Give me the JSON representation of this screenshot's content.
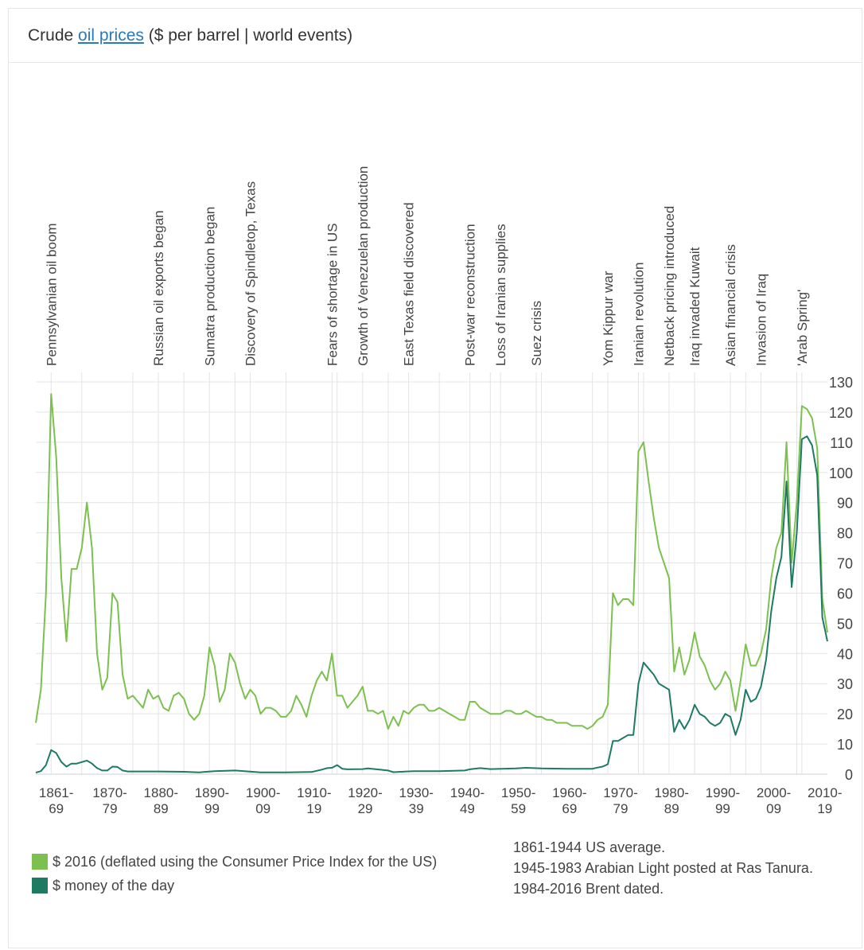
{
  "header": {
    "prefix": "Crude ",
    "link": "oil prices",
    "suffix": " ($ per barrel | world events)"
  },
  "colors": {
    "real_series": "#7cc04f",
    "nominal_series": "#1e7a63",
    "grid": "#e4e4e4",
    "text": "#444444"
  },
  "chart_data": {
    "type": "line",
    "ylim": [
      0,
      130
    ],
    "xlim": [
      1861,
      2016
    ],
    "y_ticks": [
      "0",
      "10",
      "20",
      "30",
      "40",
      "50",
      "60",
      "70",
      "80",
      "90",
      "100",
      "110",
      "120",
      "130"
    ],
    "x_tick_labels": [
      {
        "line1": "1861-",
        "line2": "69"
      },
      {
        "line1": "1870-",
        "line2": "79"
      },
      {
        "line1": "1880-",
        "line2": "89"
      },
      {
        "line1": "1890-",
        "line2": "99"
      },
      {
        "line1": "1900-",
        "line2": "09"
      },
      {
        "line1": "1910-",
        "line2": "19"
      },
      {
        "line1": "1920-",
        "line2": "29"
      },
      {
        "line1": "1930-",
        "line2": "39"
      },
      {
        "line1": "1940-",
        "line2": "49"
      },
      {
        "line1": "1950-",
        "line2": "59"
      },
      {
        "line1": "1960-",
        "line2": "69"
      },
      {
        "line1": "1970-",
        "line2": "79"
      },
      {
        "line1": "1980-",
        "line2": "89"
      },
      {
        "line1": "1990-",
        "line2": "99"
      },
      {
        "line1": "2000-",
        "line2": "09"
      },
      {
        "line1": "2010-",
        "line2": "19"
      }
    ],
    "events": [
      {
        "label": "Pennsylvanian oil boom",
        "year": 1864
      },
      {
        "label": "Russian oil exports  began",
        "year": 1885
      },
      {
        "label": "Sumatra production began",
        "year": 1895
      },
      {
        "label": "Discovery of Spindletop, Texas",
        "year": 1903
      },
      {
        "label": "Fears of shortage in US",
        "year": 1919
      },
      {
        "label": "Growth of Venezuelan production",
        "year": 1925
      },
      {
        "label": "East Texas field discovered",
        "year": 1934
      },
      {
        "label": "Post-war reconstruction",
        "year": 1946
      },
      {
        "label": "Loss of Iranian supplies",
        "year": 1952
      },
      {
        "label": "Suez crisis",
        "year": 1959
      },
      {
        "label": "Yom Kippur war",
        "year": 1973
      },
      {
        "label": "Iranian revolution",
        "year": 1979
      },
      {
        "label": "Netback pricing introduced",
        "year": 1985
      },
      {
        "label": "Iraq invaded Kuwait",
        "year": 1990
      },
      {
        "label": "Asian financial crisis",
        "year": 1997
      },
      {
        "label": "Invasion of Iraq",
        "year": 2003
      },
      {
        "label": "'Arab Spring'",
        "year": 2011
      }
    ],
    "series": [
      {
        "name": "$ 2016 (deflated using the Consumer Price Index for the US)",
        "points": [
          [
            1861,
            17
          ],
          [
            1862,
            28
          ],
          [
            1863,
            60
          ],
          [
            1864,
            126
          ],
          [
            1865,
            105
          ],
          [
            1866,
            65
          ],
          [
            1867,
            44
          ],
          [
            1868,
            68
          ],
          [
            1869,
            68
          ],
          [
            1870,
            75
          ],
          [
            1871,
            90
          ],
          [
            1872,
            75
          ],
          [
            1873,
            40
          ],
          [
            1874,
            28
          ],
          [
            1875,
            32
          ],
          [
            1876,
            60
          ],
          [
            1877,
            57
          ],
          [
            1878,
            33
          ],
          [
            1879,
            25
          ],
          [
            1880,
            26
          ],
          [
            1881,
            24
          ],
          [
            1882,
            22
          ],
          [
            1883,
            28
          ],
          [
            1884,
            25
          ],
          [
            1885,
            26
          ],
          [
            1886,
            22
          ],
          [
            1887,
            21
          ],
          [
            1888,
            26
          ],
          [
            1889,
            27
          ],
          [
            1890,
            25
          ],
          [
            1891,
            20
          ],
          [
            1892,
            18
          ],
          [
            1893,
            20
          ],
          [
            1894,
            26
          ],
          [
            1895,
            42
          ],
          [
            1896,
            36
          ],
          [
            1897,
            24
          ],
          [
            1898,
            28
          ],
          [
            1899,
            40
          ],
          [
            1900,
            37
          ],
          [
            1901,
            30
          ],
          [
            1902,
            25
          ],
          [
            1903,
            28
          ],
          [
            1904,
            26
          ],
          [
            1905,
            20
          ],
          [
            1906,
            22
          ],
          [
            1907,
            22
          ],
          [
            1908,
            21
          ],
          [
            1909,
            19
          ],
          [
            1910,
            19
          ],
          [
            1911,
            21
          ],
          [
            1912,
            26
          ],
          [
            1913,
            23
          ],
          [
            1914,
            19
          ],
          [
            1915,
            26
          ],
          [
            1916,
            31
          ],
          [
            1917,
            34
          ],
          [
            1918,
            31
          ],
          [
            1919,
            40
          ],
          [
            1920,
            26
          ],
          [
            1921,
            26
          ],
          [
            1922,
            22
          ],
          [
            1923,
            24
          ],
          [
            1924,
            26
          ],
          [
            1925,
            29
          ],
          [
            1926,
            21
          ],
          [
            1927,
            21
          ],
          [
            1928,
            20
          ],
          [
            1929,
            21
          ],
          [
            1930,
            15
          ],
          [
            1931,
            19
          ],
          [
            1932,
            16
          ],
          [
            1933,
            21
          ],
          [
            1934,
            20
          ],
          [
            1935,
            22
          ],
          [
            1936,
            23
          ],
          [
            1937,
            23
          ],
          [
            1938,
            21
          ],
          [
            1939,
            21
          ],
          [
            1940,
            22
          ],
          [
            1941,
            21
          ],
          [
            1942,
            20
          ],
          [
            1943,
            19
          ],
          [
            1944,
            18
          ],
          [
            1945,
            18
          ],
          [
            1946,
            24
          ],
          [
            1947,
            24
          ],
          [
            1948,
            22
          ],
          [
            1949,
            21
          ],
          [
            1950,
            20
          ],
          [
            1951,
            20
          ],
          [
            1952,
            20
          ],
          [
            1953,
            21
          ],
          [
            1954,
            21
          ],
          [
            1955,
            20
          ],
          [
            1956,
            20
          ],
          [
            1957,
            21
          ],
          [
            1958,
            20
          ],
          [
            1959,
            19
          ],
          [
            1960,
            19
          ],
          [
            1961,
            18
          ],
          [
            1962,
            18
          ],
          [
            1963,
            17
          ],
          [
            1964,
            17
          ],
          [
            1965,
            17
          ],
          [
            1966,
            16
          ],
          [
            1967,
            16
          ],
          [
            1968,
            16
          ],
          [
            1969,
            15
          ],
          [
            1970,
            16
          ],
          [
            1971,
            18
          ],
          [
            1972,
            19
          ],
          [
            1973,
            23
          ],
          [
            1974,
            60
          ],
          [
            1975,
            56
          ],
          [
            1976,
            58
          ],
          [
            1977,
            58
          ],
          [
            1978,
            56
          ],
          [
            1979,
            107
          ],
          [
            1980,
            110
          ],
          [
            1981,
            97
          ],
          [
            1982,
            85
          ],
          [
            1983,
            75
          ],
          [
            1984,
            70
          ],
          [
            1985,
            65
          ],
          [
            1986,
            34
          ],
          [
            1987,
            42
          ],
          [
            1988,
            33
          ],
          [
            1989,
            38
          ],
          [
            1990,
            47
          ],
          [
            1991,
            39
          ],
          [
            1992,
            36
          ],
          [
            1993,
            31
          ],
          [
            1994,
            28
          ],
          [
            1995,
            30
          ],
          [
            1996,
            34
          ],
          [
            1997,
            31
          ],
          [
            1998,
            21
          ],
          [
            1999,
            31
          ],
          [
            2000,
            43
          ],
          [
            2001,
            36
          ],
          [
            2002,
            36
          ],
          [
            2003,
            40
          ],
          [
            2004,
            48
          ],
          [
            2005,
            65
          ],
          [
            2006,
            75
          ],
          [
            2007,
            80
          ],
          [
            2008,
            110
          ],
          [
            2009,
            70
          ],
          [
            2010,
            90
          ],
          [
            2011,
            122
          ],
          [
            2012,
            121
          ],
          [
            2013,
            118
          ],
          [
            2014,
            108
          ],
          [
            2015,
            58
          ],
          [
            2016,
            47
          ]
        ]
      },
      {
        "name": "$ money of the day",
        "points": [
          [
            1861,
            0.5
          ],
          [
            1862,
            1
          ],
          [
            1863,
            3
          ],
          [
            1864,
            8
          ],
          [
            1865,
            7
          ],
          [
            1866,
            4
          ],
          [
            1867,
            2.5
          ],
          [
            1868,
            3.5
          ],
          [
            1869,
            3.5
          ],
          [
            1870,
            4
          ],
          [
            1871,
            4.5
          ],
          [
            1872,
            3.5
          ],
          [
            1873,
            2
          ],
          [
            1874,
            1.2
          ],
          [
            1875,
            1.2
          ],
          [
            1876,
            2.5
          ],
          [
            1877,
            2.4
          ],
          [
            1878,
            1.2
          ],
          [
            1879,
            0.9
          ],
          [
            1880,
            0.9
          ],
          [
            1885,
            0.9
          ],
          [
            1890,
            0.8
          ],
          [
            1893,
            0.6
          ],
          [
            1896,
            1
          ],
          [
            1900,
            1.2
          ],
          [
            1905,
            0.6
          ],
          [
            1910,
            0.6
          ],
          [
            1915,
            0.7
          ],
          [
            1917,
            1.5
          ],
          [
            1918,
            2
          ],
          [
            1919,
            2.1
          ],
          [
            1920,
            3
          ],
          [
            1921,
            1.8
          ],
          [
            1922,
            1.6
          ],
          [
            1925,
            1.7
          ],
          [
            1926,
            1.9
          ],
          [
            1930,
            1.2
          ],
          [
            1931,
            0.65
          ],
          [
            1935,
            1
          ],
          [
            1940,
            1
          ],
          [
            1945,
            1.2
          ],
          [
            1946,
            1.6
          ],
          [
            1948,
            2
          ],
          [
            1950,
            1.7
          ],
          [
            1955,
            1.9
          ],
          [
            1957,
            2.1
          ],
          [
            1960,
            1.9
          ],
          [
            1965,
            1.8
          ],
          [
            1969,
            1.8
          ],
          [
            1970,
            1.8
          ],
          [
            1971,
            2.2
          ],
          [
            1972,
            2.5
          ],
          [
            1973,
            3.3
          ],
          [
            1974,
            11
          ],
          [
            1975,
            11
          ],
          [
            1976,
            12
          ],
          [
            1977,
            13
          ],
          [
            1978,
            13
          ],
          [
            1979,
            30
          ],
          [
            1980,
            37
          ],
          [
            1981,
            35
          ],
          [
            1982,
            33
          ],
          [
            1983,
            30
          ],
          [
            1984,
            29
          ],
          [
            1985,
            28
          ],
          [
            1986,
            14
          ],
          [
            1987,
            18
          ],
          [
            1988,
            15
          ],
          [
            1989,
            18
          ],
          [
            1990,
            23
          ],
          [
            1991,
            20
          ],
          [
            1992,
            19
          ],
          [
            1993,
            17
          ],
          [
            1994,
            16
          ],
          [
            1995,
            17
          ],
          [
            1996,
            20
          ],
          [
            1997,
            19
          ],
          [
            1998,
            13
          ],
          [
            1999,
            18
          ],
          [
            2000,
            28
          ],
          [
            2001,
            24
          ],
          [
            2002,
            25
          ],
          [
            2003,
            29
          ],
          [
            2004,
            38
          ],
          [
            2005,
            54
          ],
          [
            2006,
            65
          ],
          [
            2007,
            72
          ],
          [
            2008,
            97
          ],
          [
            2009,
            62
          ],
          [
            2010,
            80
          ],
          [
            2011,
            111
          ],
          [
            2012,
            112
          ],
          [
            2013,
            109
          ],
          [
            2014,
            99
          ],
          [
            2015,
            52
          ],
          [
            2016,
            44
          ]
        ]
      }
    ]
  },
  "notes": [
    "1861-1944 US average.",
    "1945-1983 Arabian Light posted at Ras Tanura.",
    "1984-2016 Brent dated."
  ]
}
